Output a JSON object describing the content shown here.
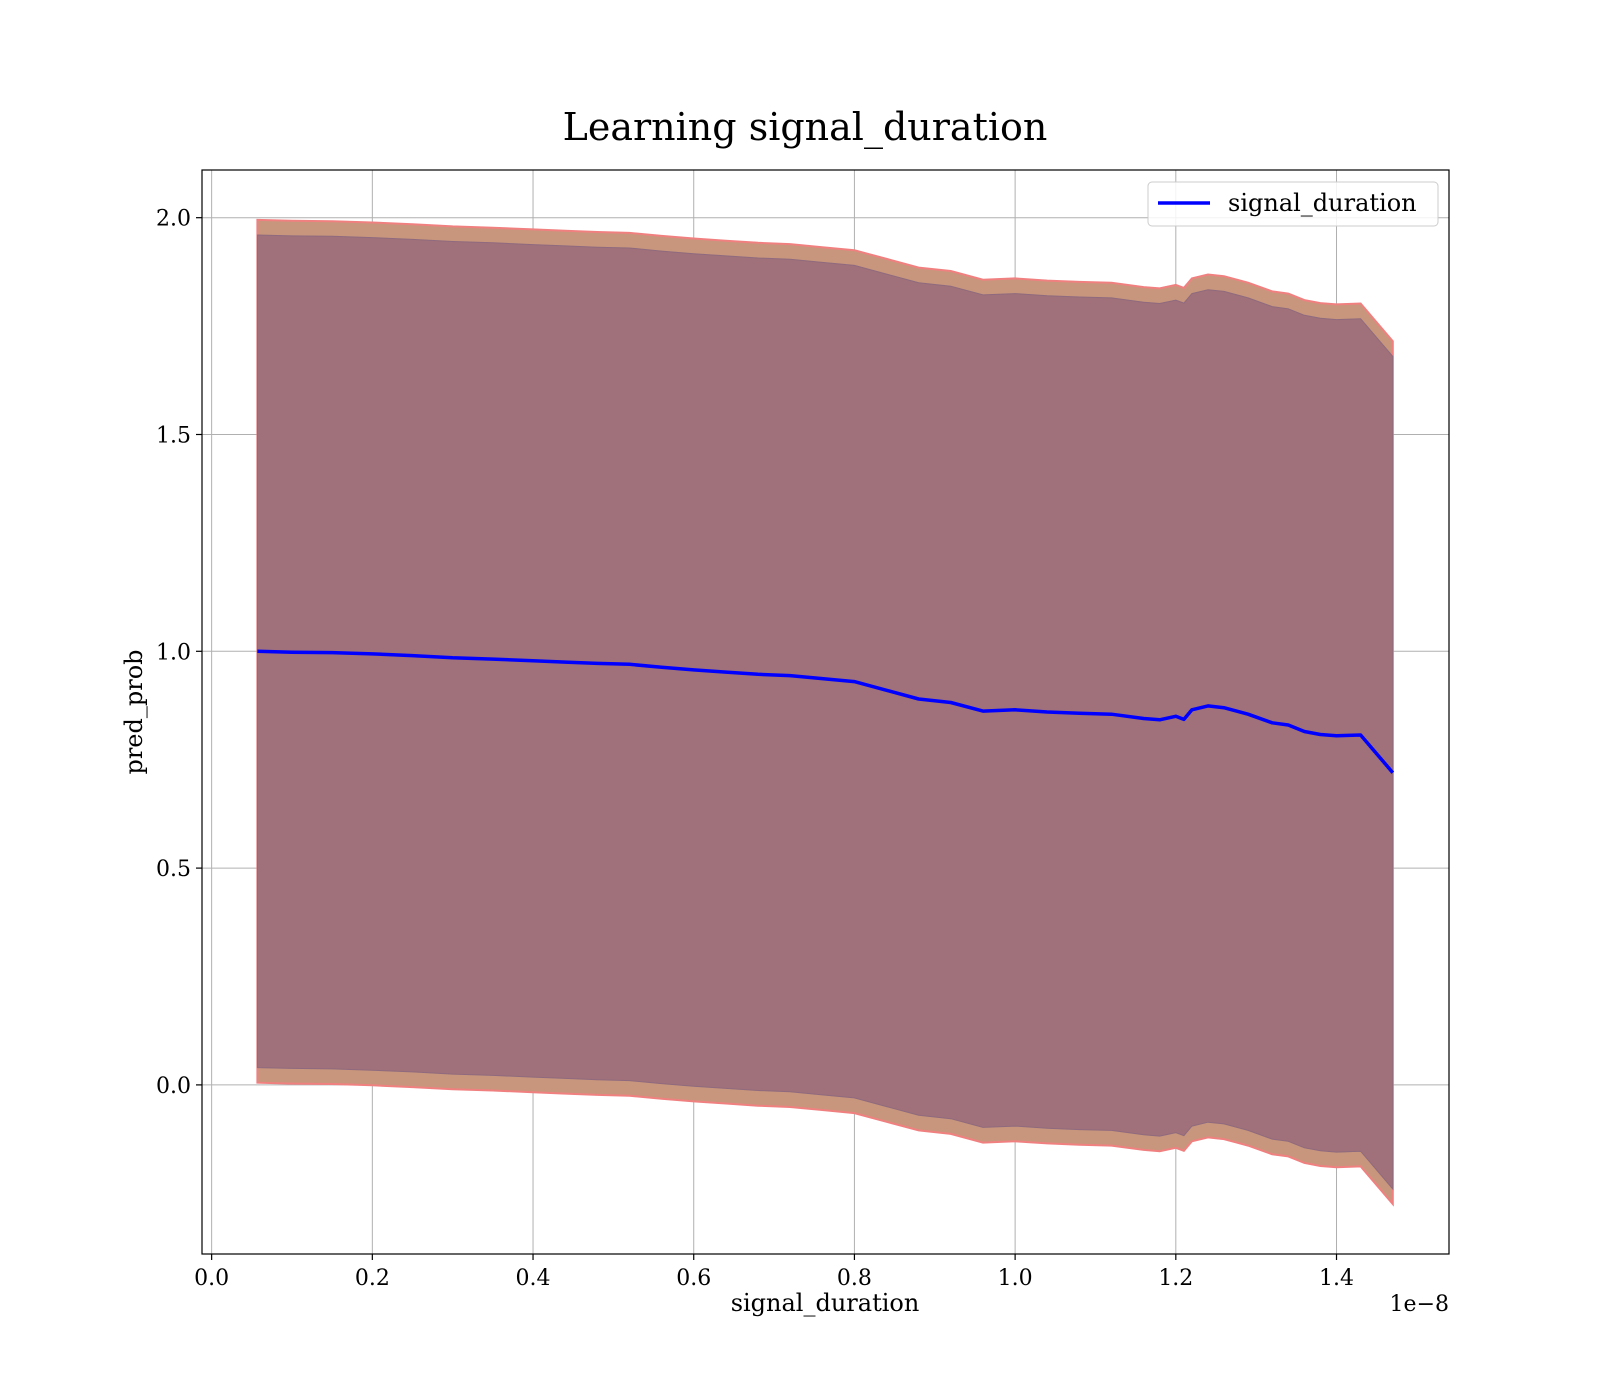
{
  "chart_data": {
    "type": "line",
    "title": "Learning signal_duration",
    "xlabel": "signal_duration",
    "ylabel": "pred_prob",
    "x_offset_text": "1e−8",
    "xlim": [
      -0.012,
      1.54
    ],
    "ylim": [
      -0.39,
      2.11
    ],
    "x_ticks": [
      0.0,
      0.2,
      0.4,
      0.6,
      0.8,
      1.0,
      1.2,
      1.4
    ],
    "x_tick_labels": [
      "0.0",
      "0.2",
      "0.4",
      "0.6",
      "0.8",
      "1.0",
      "1.2",
      "1.4"
    ],
    "y_ticks": [
      0.0,
      0.5,
      1.0,
      1.5,
      2.0
    ],
    "y_tick_labels": [
      "0.0",
      "0.5",
      "1.0",
      "1.5",
      "2.0"
    ],
    "grid": true,
    "legend_position": "upper right",
    "colors": {
      "line": "#0000ff",
      "band_inner": "#a0717a",
      "band_outer": "#c8967c",
      "band_edge": "#f08080",
      "grid": "#b0b0b0"
    },
    "series": [
      {
        "name": "signal_duration",
        "x": [
          0.057,
          0.1,
          0.15,
          0.2,
          0.25,
          0.3,
          0.35,
          0.4,
          0.44,
          0.48,
          0.52,
          0.56,
          0.6,
          0.64,
          0.68,
          0.72,
          0.76,
          0.8,
          0.84,
          0.88,
          0.92,
          0.96,
          1.0,
          1.04,
          1.08,
          1.12,
          1.16,
          1.18,
          1.2,
          1.21,
          1.22,
          1.24,
          1.26,
          1.29,
          1.32,
          1.34,
          1.36,
          1.38,
          1.4,
          1.43,
          1.47
        ],
        "y": [
          1.0,
          0.998,
          0.997,
          0.994,
          0.99,
          0.985,
          0.982,
          0.978,
          0.975,
          0.972,
          0.97,
          0.963,
          0.957,
          0.952,
          0.947,
          0.944,
          0.937,
          0.93,
          0.91,
          0.89,
          0.882,
          0.862,
          0.865,
          0.86,
          0.857,
          0.855,
          0.845,
          0.842,
          0.85,
          0.843,
          0.865,
          0.874,
          0.87,
          0.855,
          0.835,
          0.83,
          0.815,
          0.808,
          0.805,
          0.807,
          0.72
        ],
        "band_inner_halfwidth": 0.96,
        "band_outer_halfwidth": 0.995
      }
    ]
  }
}
